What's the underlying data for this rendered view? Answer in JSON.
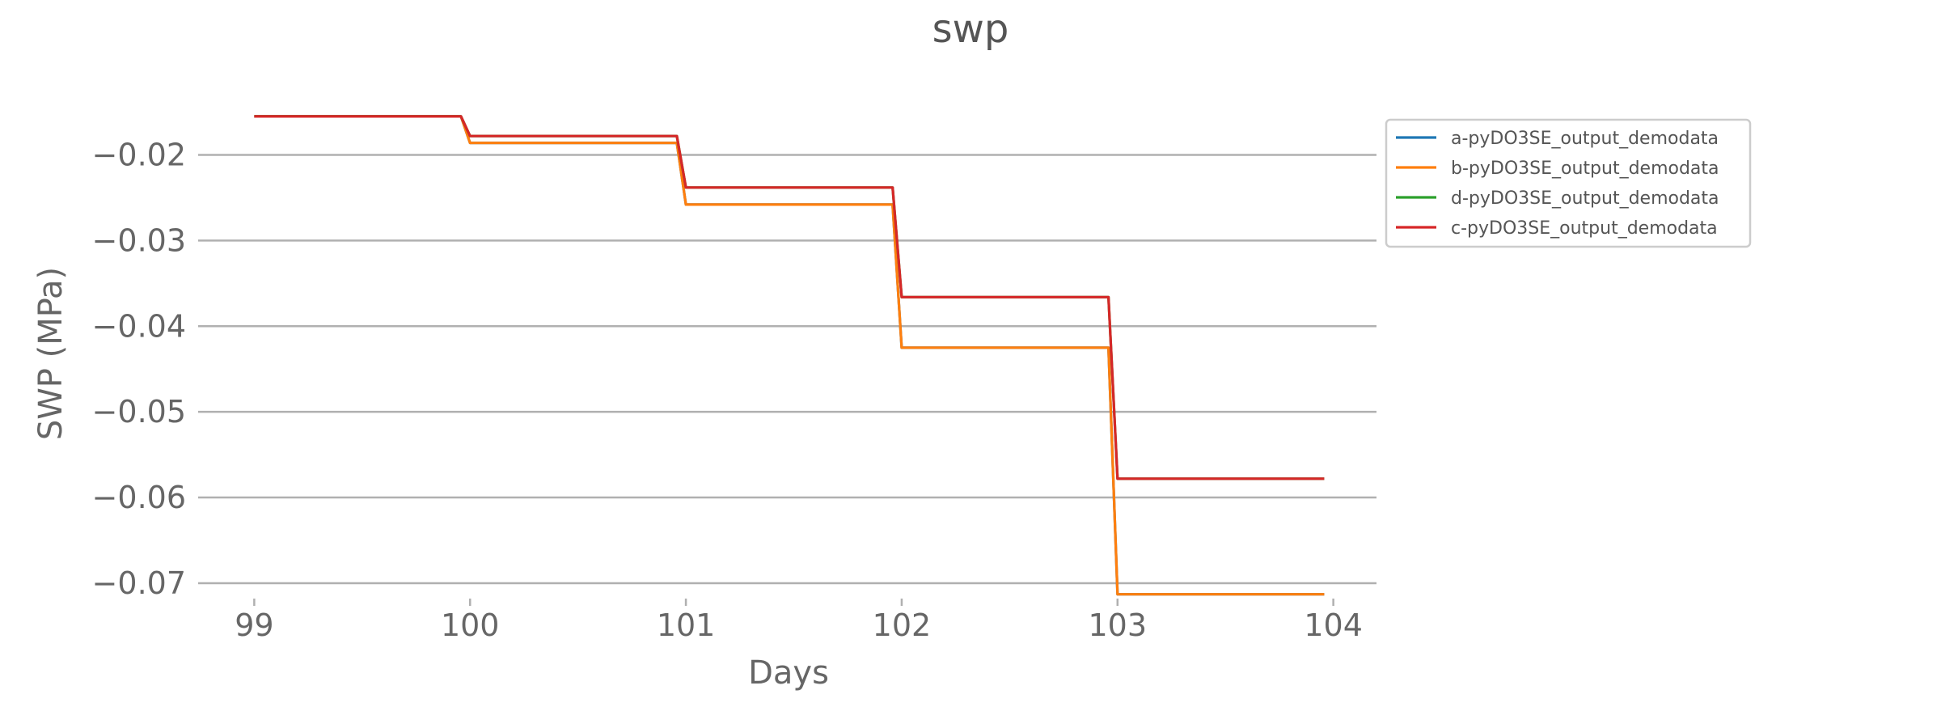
{
  "chart_data": {
    "type": "line",
    "title": "swp",
    "xlabel": "Days",
    "ylabel": "SWP (MPa)",
    "xlim": [
      98.74,
      104.2
    ],
    "ylim": [
      -0.0718,
      -0.0123
    ],
    "xticks": [
      99,
      100,
      101,
      102,
      103,
      104
    ],
    "xtick_labels": [
      "99",
      "100",
      "101",
      "102",
      "103",
      "104"
    ],
    "yticks": [
      -0.02,
      -0.03,
      -0.04,
      -0.05,
      -0.06,
      -0.07
    ],
    "ytick_labels": [
      "−0.02",
      "−0.03",
      "−0.04",
      "−0.05",
      "−0.06",
      "−0.07"
    ],
    "grid": "y",
    "legend": "right",
    "series": [
      {
        "name": "a-pyDO3SE_output_demodata",
        "color": "#1f77b4",
        "x": [
          99,
          99.958,
          100,
          100.958,
          101,
          101.958,
          102,
          102.958,
          103,
          103.958
        ],
        "y": [
          -0.0155,
          -0.0155,
          -0.0186,
          -0.0186,
          -0.0258,
          -0.0258,
          -0.0425,
          -0.0425,
          -0.0713,
          -0.0713
        ]
      },
      {
        "name": "b-pyDO3SE_output_demodata",
        "color": "#ff7f0e",
        "x": [
          99,
          99.958,
          100,
          100.958,
          101,
          101.958,
          102,
          102.958,
          103,
          103.958
        ],
        "y": [
          -0.0155,
          -0.0155,
          -0.0186,
          -0.0186,
          -0.0258,
          -0.0258,
          -0.0425,
          -0.0425,
          -0.0713,
          -0.0713
        ]
      },
      {
        "name": "d-pyDO3SE_output_demodata",
        "color": "#2ca02c",
        "x": [
          99,
          99.958,
          100,
          100.958,
          101,
          101.958,
          102,
          102.958,
          103,
          103.958
        ],
        "y": [
          -0.0155,
          -0.0155,
          -0.0178,
          -0.0178,
          -0.0238,
          -0.0238,
          -0.0366,
          -0.0366,
          -0.0578,
          -0.0578
        ]
      },
      {
        "name": "c-pyDO3SE_output_demodata",
        "color": "#d62728",
        "x": [
          99,
          99.958,
          100,
          100.958,
          101,
          101.958,
          102,
          102.958,
          103,
          103.958
        ],
        "y": [
          -0.0155,
          -0.0155,
          -0.0178,
          -0.0178,
          -0.0238,
          -0.0238,
          -0.0366,
          -0.0366,
          -0.0578,
          -0.0578
        ]
      }
    ]
  }
}
